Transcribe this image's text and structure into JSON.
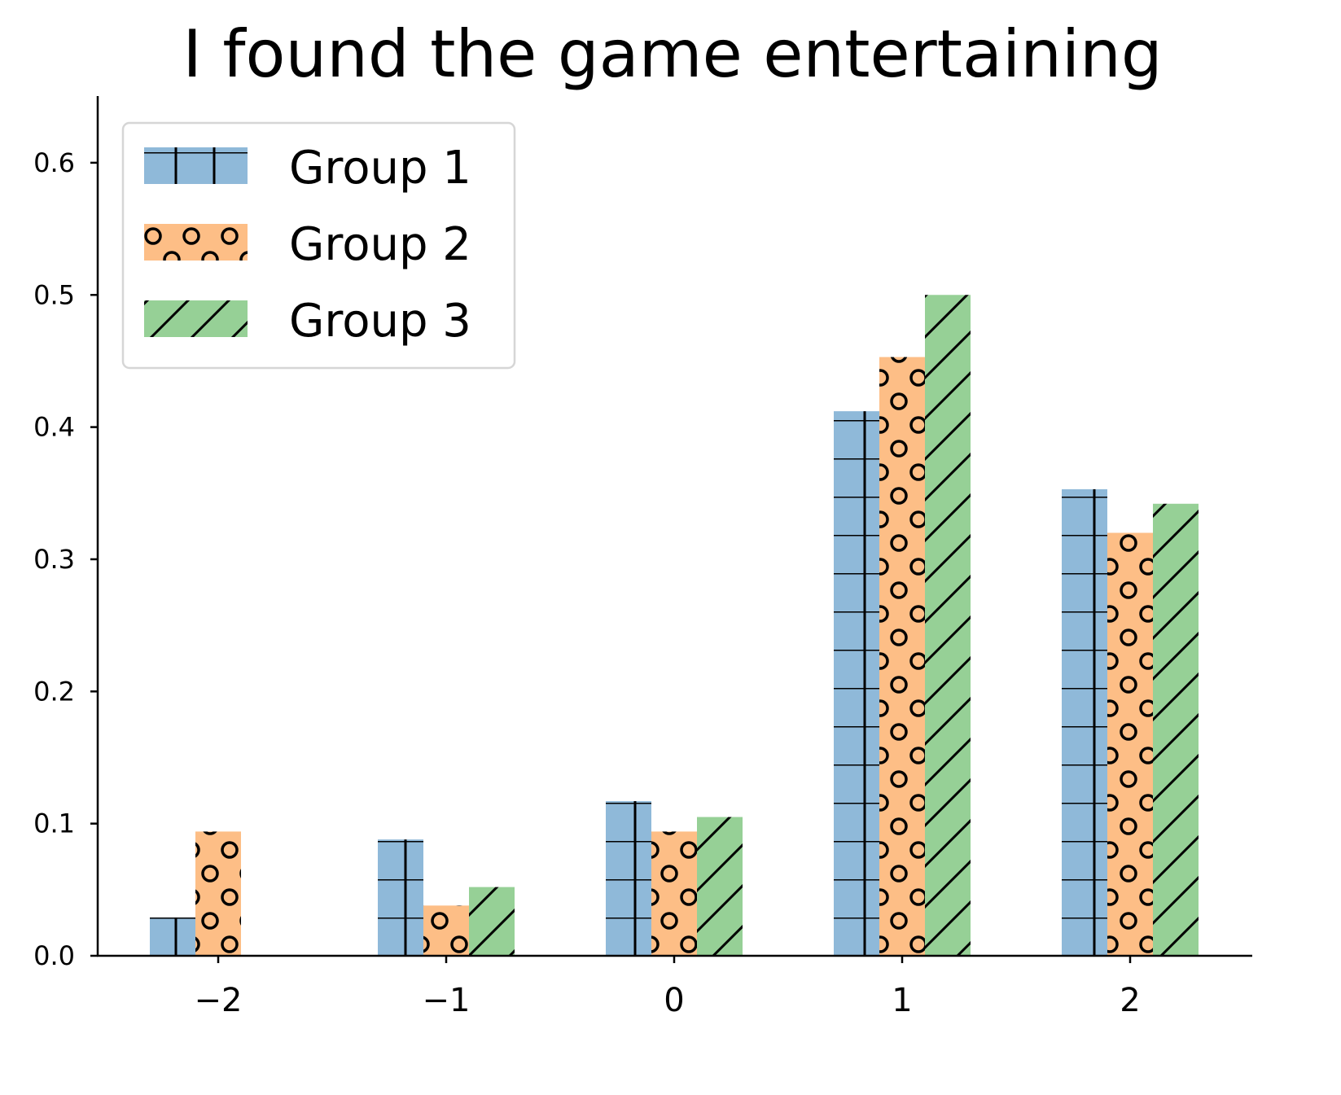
{
  "chart_data": {
    "type": "bar",
    "title": "I found the game entertaining",
    "xlabel": "",
    "ylabel": "",
    "categories": [
      "−2",
      "−1",
      "0",
      "1",
      "2"
    ],
    "series": [
      {
        "name": "Group 1",
        "color": "#8fb9d9",
        "hatch": "grid",
        "values": [
          0.029,
          0.088,
          0.117,
          0.412,
          0.353
        ]
      },
      {
        "name": "Group 2",
        "color": "#fdbe86",
        "hatch": "circles",
        "values": [
          0.094,
          0.038,
          0.094,
          0.453,
          0.32
        ]
      },
      {
        "name": "Group 3",
        "color": "#96d096",
        "hatch": "diagonal",
        "values": [
          0.0,
          0.052,
          0.105,
          0.5,
          0.342
        ]
      }
    ],
    "ylim": [
      0,
      0.65
    ],
    "yticks": [
      "0.0",
      "0.1",
      "0.2",
      "0.3",
      "0.4",
      "0.5",
      "0.6"
    ],
    "grid": false,
    "legend_position": "upper left"
  }
}
